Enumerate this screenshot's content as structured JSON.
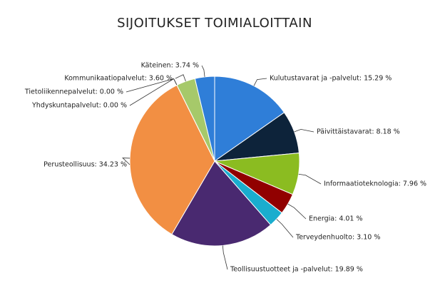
{
  "chart_data": {
    "type": "pie",
    "title": "SIJOITUKSET TOIMIALOITTAIN",
    "categories": [
      "Kulutustavarat ja -palvelut",
      "Päivittäistavarat",
      "Informaatioteknologia",
      "Energia",
      "Terveydenhuolto",
      "Teollisuustuotteet ja -palvelut",
      "Perusteollisuus",
      "Yhdyskuntapalvelut",
      "Tietoliikennepalvelut",
      "Kommunikaatiopalvelut",
      "Käteinen"
    ],
    "values": [
      15.29,
      8.18,
      7.96,
      4.01,
      3.1,
      19.89,
      34.23,
      0.0,
      0.0,
      3.6,
      3.74
    ],
    "value_labels": [
      "Kulutustavarat ja -palvelut: 15.29 %",
      "Päivittäistavarat: 8.18 %",
      "Informaatioteknologia: 7.96 %",
      "Energia: 4.01 %",
      "Terveydenhuolto: 3.10 %",
      "Teollisuustuotteet ja -palvelut: 19.89 %",
      "Perusteollisuus: 34.23 %",
      "Yhdyskuntapalvelut: 0.00 %",
      "Tietoliikennepalvelut: 0.00 %",
      "Kommunikaatiopalvelut: 3.60 %",
      "Käteinen: 3.74 %"
    ],
    "colors": [
      "#2f7ed8",
      "#0d233a",
      "#8bbc21",
      "#910000",
      "#1aadce",
      "#492970",
      "#f28f43",
      "#77a1e5",
      "#c42525",
      "#a6c96a",
      "#2f7ed8"
    ]
  }
}
